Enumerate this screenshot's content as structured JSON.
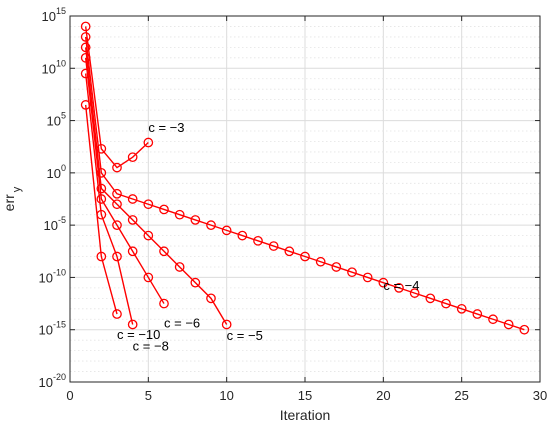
{
  "chart_data": {
    "type": "line",
    "title": "",
    "xlabel": "Iteration",
    "ylabel": {
      "base": "err",
      "sub": "y"
    },
    "xlim": [
      0,
      30
    ],
    "ylim_log10": [
      -20,
      15
    ],
    "y_scale": "log",
    "grid": true,
    "minor_grid_y": true,
    "x_ticks": [
      0,
      5,
      10,
      15,
      20,
      25,
      30
    ],
    "y_tick_exponents": [
      -20,
      -15,
      -10,
      -5,
      0,
      5,
      10,
      15
    ],
    "y_tick_base": "10",
    "line_color": "#ff0000",
    "marker": "circle",
    "series": [
      {
        "x": [
          1,
          2,
          3,
          4,
          5
        ],
        "y_log10": [
          14,
          2.3,
          0.5,
          1.5,
          2.9
        ]
      },
      {
        "x": [
          1,
          2,
          3,
          4,
          5,
          6,
          7,
          8,
          9,
          10,
          11,
          12,
          13,
          14,
          15,
          16,
          17,
          18,
          19,
          20,
          21,
          22,
          23,
          24,
          25,
          26,
          27,
          28,
          29
        ],
        "y_log10": [
          13,
          0,
          -2,
          -2.5,
          -3,
          -3.5,
          -4,
          -4.5,
          -5,
          -5.5,
          -6,
          -6.5,
          -7,
          -7.5,
          -8,
          -8.5,
          -9,
          -9.5,
          -10,
          -10.5,
          -11,
          -11.5,
          -12,
          -12.5,
          -13,
          -13.5,
          -14,
          -14.5,
          -15
        ]
      },
      {
        "x": [
          1,
          2,
          3,
          4,
          5,
          6,
          7,
          8,
          9,
          10
        ],
        "y_log10": [
          12,
          -1.5,
          -3,
          -4.5,
          -6,
          -7.5,
          -9,
          -10.5,
          -12,
          -14.5
        ]
      },
      {
        "x": [
          1,
          2,
          3,
          4,
          5,
          6
        ],
        "y_log10": [
          11,
          -2.5,
          -5,
          -7.5,
          -10,
          -12.5
        ]
      },
      {
        "x": [
          1,
          2,
          3,
          4
        ],
        "y_log10": [
          9.5,
          -4,
          -8,
          -14.5
        ]
      },
      {
        "x": [
          1,
          2,
          3
        ],
        "y_log10": [
          6.5,
          -8,
          -13.5
        ]
      }
    ],
    "annotations": [
      {
        "text": "c = −3",
        "x": 5,
        "y_log10": 3.9
      },
      {
        "text": "c = −4",
        "x": 20,
        "y_log10": -11.2
      },
      {
        "text": "c = −5",
        "x": 10,
        "y_log10": -16.0
      },
      {
        "text": "c = −6",
        "x": 6,
        "y_log10": -14.8
      },
      {
        "text": "c = −8",
        "x": 4,
        "y_log10": -17.0
      },
      {
        "text": "c = −10",
        "x": 3,
        "y_log10": -15.9
      }
    ]
  }
}
